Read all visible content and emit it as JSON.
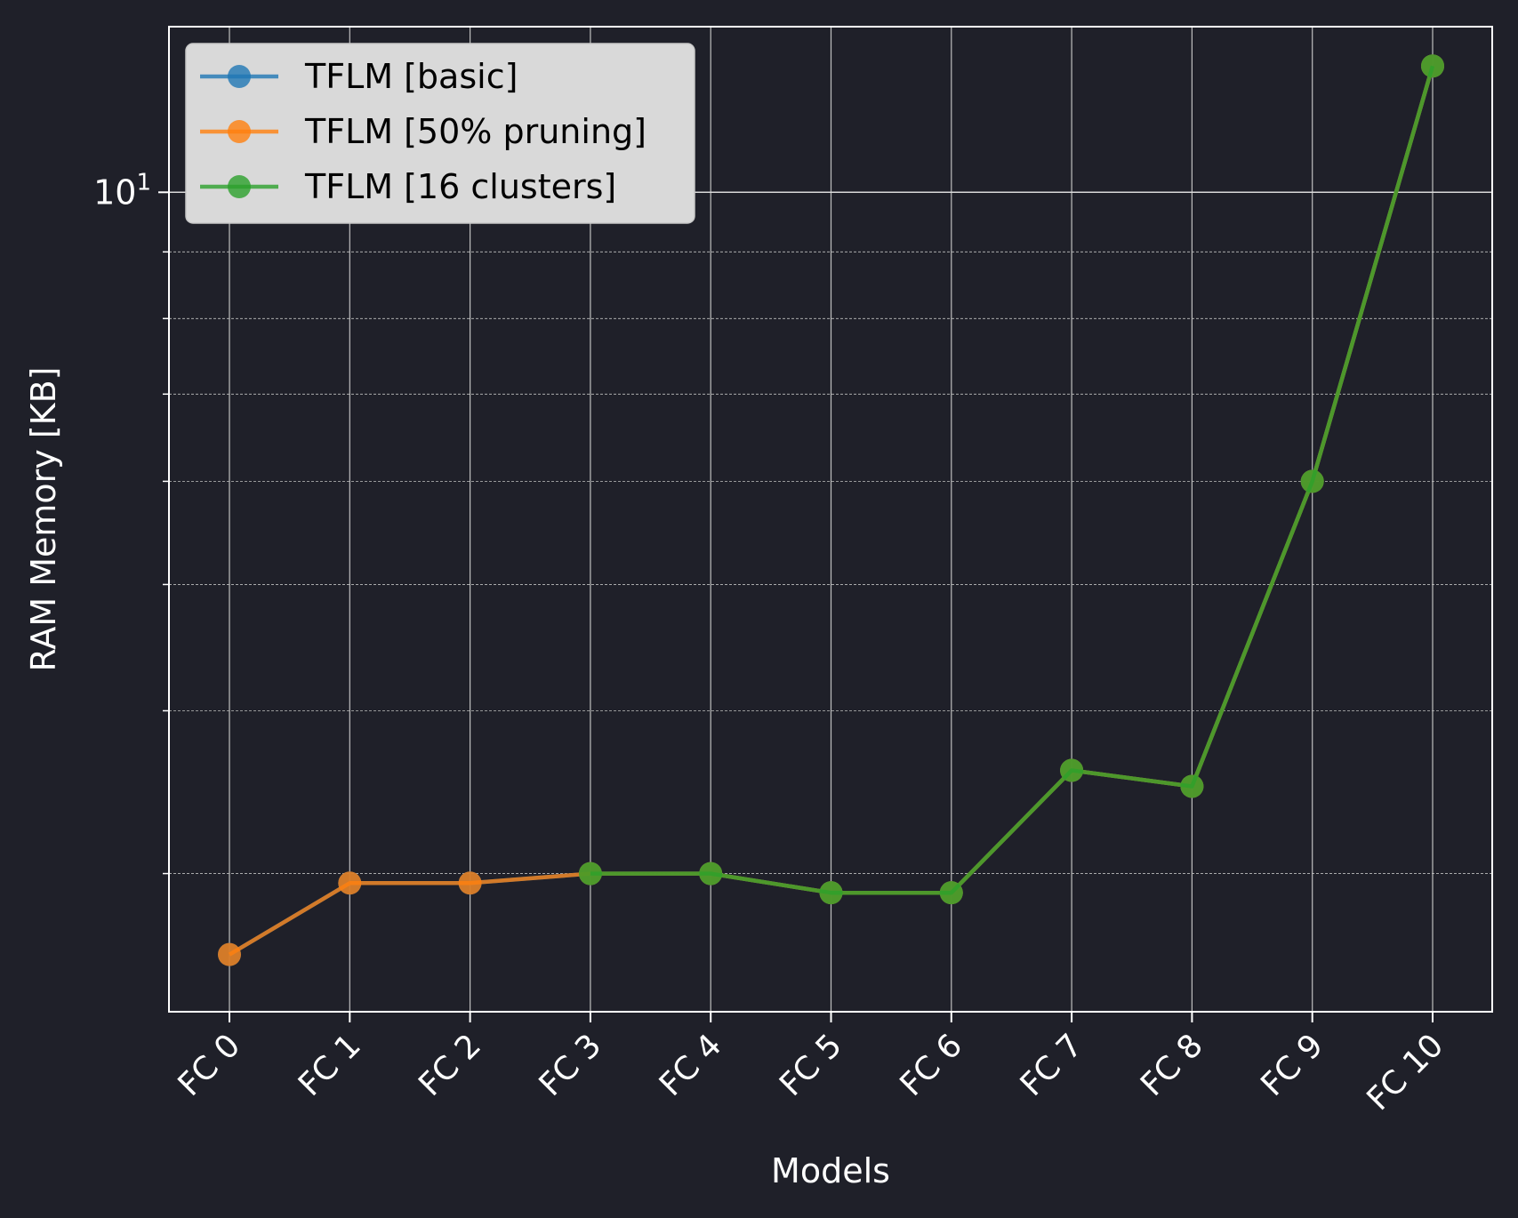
{
  "chart_data": {
    "type": "line",
    "title": "",
    "xlabel": "Models",
    "ylabel": "RAM Memory [KB]",
    "yscale": "log",
    "ylim": [
      2.35,
      13.4
    ],
    "grid": true,
    "legend_position": "top-left",
    "categories": [
      "FC 0",
      "FC 1",
      "FC 2",
      "FC 3",
      "FC 4",
      "FC 5",
      "FC 6",
      "FC 7",
      "FC 8",
      "FC 9",
      "FC 10"
    ],
    "y_tick_labels": [
      {
        "value": 10,
        "base": "10",
        "exponent": "1"
      }
    ],
    "y_minor_ticks": [
      3,
      4,
      5,
      6,
      7,
      8,
      9
    ],
    "series": [
      {
        "name": "TFLM [basic]",
        "color": "#1f77b4",
        "values": [
          2.6,
          2.95,
          2.95,
          3.0,
          3.0,
          2.9,
          2.9,
          3.6,
          3.5,
          6.0,
          12.5
        ]
      },
      {
        "name": "TFLM [50% pruning]",
        "color": "#ff7f0e",
        "values": [
          2.6,
          2.95,
          2.95,
          3.0,
          3.0,
          2.9,
          2.9,
          3.6,
          3.5,
          6.0,
          12.5
        ]
      },
      {
        "name": "TFLM [16 clusters]",
        "color": "#2ca02c",
        "values": [
          null,
          null,
          null,
          3.0,
          3.0,
          2.9,
          2.9,
          3.6,
          3.5,
          6.0,
          12.5
        ]
      }
    ]
  }
}
